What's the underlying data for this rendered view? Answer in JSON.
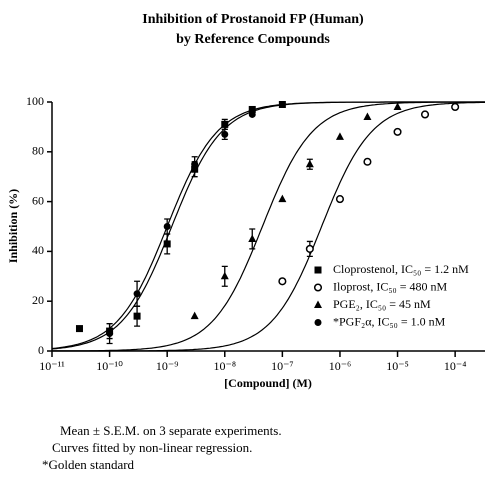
{
  "chart_data": {
    "type": "scatter",
    "title": [
      "Inhibition of  Prostanoid FP (Human)",
      "by Reference Compounds"
    ],
    "x_label": "[Compound] (M)",
    "y_label": "Inhibition (%)",
    "log_x": true,
    "xlim": [
      1e-11,
      0.00033
    ],
    "xticks": [
      {
        "value": 1e-11,
        "label": "10⁻¹¹"
      },
      {
        "value": 1e-10,
        "label": "10⁻¹⁰"
      },
      {
        "value": 1e-09,
        "label": "10⁻⁹"
      },
      {
        "value": 1e-08,
        "label": "10⁻⁸"
      },
      {
        "value": 1e-07,
        "label": "10⁻⁷"
      },
      {
        "value": 1e-06,
        "label": "10⁻⁶"
      },
      {
        "value": 1e-05,
        "label": "10⁻⁵"
      },
      {
        "value": 0.0001,
        "label": "10⁻⁴"
      }
    ],
    "ylim": [
      0,
      100
    ],
    "yticks": [
      0,
      20,
      40,
      60,
      80,
      100
    ],
    "series": [
      {
        "name": "Cloprostenol, IC₅₀ = 1.2 nM",
        "marker": "square",
        "color": "#000000",
        "x": [
          3e-11,
          1e-10,
          3e-10,
          1e-09,
          3e-09,
          1e-08,
          3e-08,
          1e-07
        ],
        "values": [
          9,
          8,
          14,
          43,
          73,
          91,
          97,
          99
        ],
        "errors": [
          null,
          3,
          4,
          4,
          3,
          2,
          null,
          null
        ],
        "fit": {
          "ic50": 1.2e-09,
          "hill": 1,
          "bottom": 0,
          "top": 100
        }
      },
      {
        "name": "Iloprost, IC₅₀ = 480 nM",
        "marker": "open-circle",
        "color": "#000000",
        "x": [
          1e-07,
          3e-07,
          1e-06,
          3e-06,
          1e-05,
          3e-05,
          0.0001
        ],
        "values": [
          28,
          41,
          61,
          76,
          88,
          95,
          98
        ],
        "errors": [
          null,
          3,
          null,
          null,
          null,
          null,
          null
        ],
        "fit": {
          "ic50": 4.8e-07,
          "hill": 1,
          "bottom": 0,
          "top": 100
        }
      },
      {
        "name": "PGE₂, IC₅₀ = 45 nM",
        "marker": "triangle",
        "color": "#000000",
        "x": [
          3e-09,
          1e-08,
          3e-08,
          1e-07,
          3e-07,
          1e-06,
          3e-06,
          1e-05
        ],
        "values": [
          14,
          30,
          45,
          61,
          75,
          86,
          94,
          98
        ],
        "errors": [
          null,
          4,
          4,
          null,
          2,
          null,
          null,
          null
        ],
        "fit": {
          "ic50": 4.5e-08,
          "hill": 1,
          "bottom": 0,
          "top": 100
        }
      },
      {
        "name": "*PGF₂α, IC₅₀ = 1.0 nM",
        "marker": "circle",
        "color": "#000000",
        "x": [
          1e-10,
          3e-10,
          1e-09,
          3e-09,
          1e-08,
          3e-08
        ],
        "values": [
          7,
          23,
          50,
          75,
          87,
          95
        ],
        "errors": [
          4,
          5,
          3,
          3,
          2,
          null
        ],
        "fit": {
          "ic50": 1e-09,
          "hill": 1,
          "bottom": 0,
          "top": 100
        }
      }
    ],
    "notes": [
      "Mean ± S.E.M. on 3 separate experiments.",
      "Curves fitted by non-linear regression.",
      "*Golden standard"
    ]
  }
}
